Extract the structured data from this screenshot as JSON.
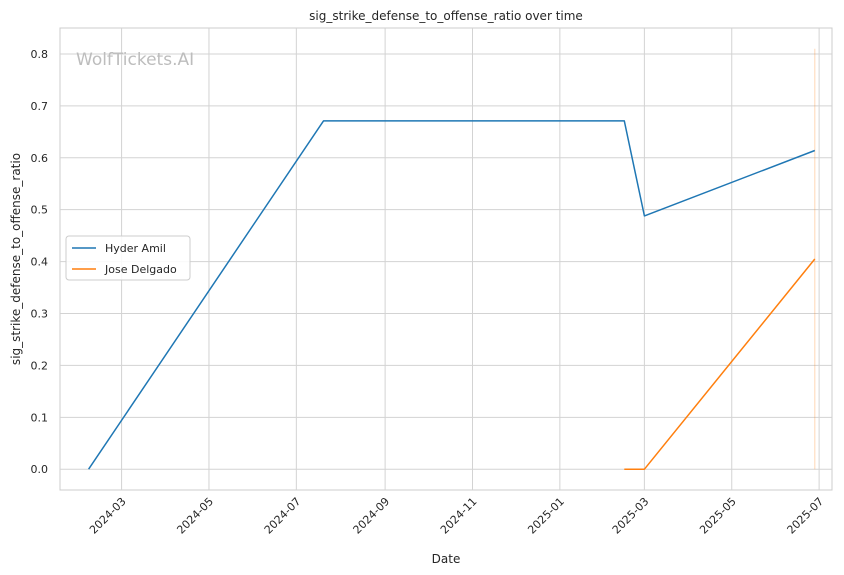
{
  "chart_data": {
    "type": "line",
    "title": "sig_strike_defense_to_offense_ratio over time",
    "xlabel": "Date",
    "ylabel": "sig_strike_defense_to_offense_ratio",
    "watermark": "WolfTickets.AI",
    "x_ticks": [
      "2024-03",
      "2024-05",
      "2024-07",
      "2024-09",
      "2024-11",
      "2025-01",
      "2025-03",
      "2025-05",
      "2025-07"
    ],
    "y_ticks": [
      "0.0",
      "0.1",
      "0.2",
      "0.3",
      "0.4",
      "0.5",
      "0.6",
      "0.7",
      "0.8"
    ],
    "xlim": [
      "2024-01-18",
      "2025-07-10"
    ],
    "ylim": [
      -0.04,
      0.85
    ],
    "grid": true,
    "legend_position": "center-left",
    "series": [
      {
        "name": "Hyder Amil",
        "color": "#1f77b4",
        "points": [
          {
            "x": "2024-02-07",
            "y": 0.0
          },
          {
            "x": "2024-07-20",
            "y": 0.671
          },
          {
            "x": "2025-02-15",
            "y": 0.671
          },
          {
            "x": "2025-03-01",
            "y": 0.488
          },
          {
            "x": "2025-06-28",
            "y": 0.614
          }
        ]
      },
      {
        "name": "Jose Delgado",
        "color": "#ff7f0e",
        "points": [
          {
            "x": "2025-02-15",
            "y": 0.0
          },
          {
            "x": "2025-03-01",
            "y": 0.0
          },
          {
            "x": "2025-06-28",
            "y": 0.405
          }
        ]
      }
    ],
    "annotations": [
      {
        "type": "vline",
        "x": "2025-06-28",
        "ymin": 0.0,
        "ymax": 0.81,
        "color": "#ff7f0e"
      }
    ]
  }
}
